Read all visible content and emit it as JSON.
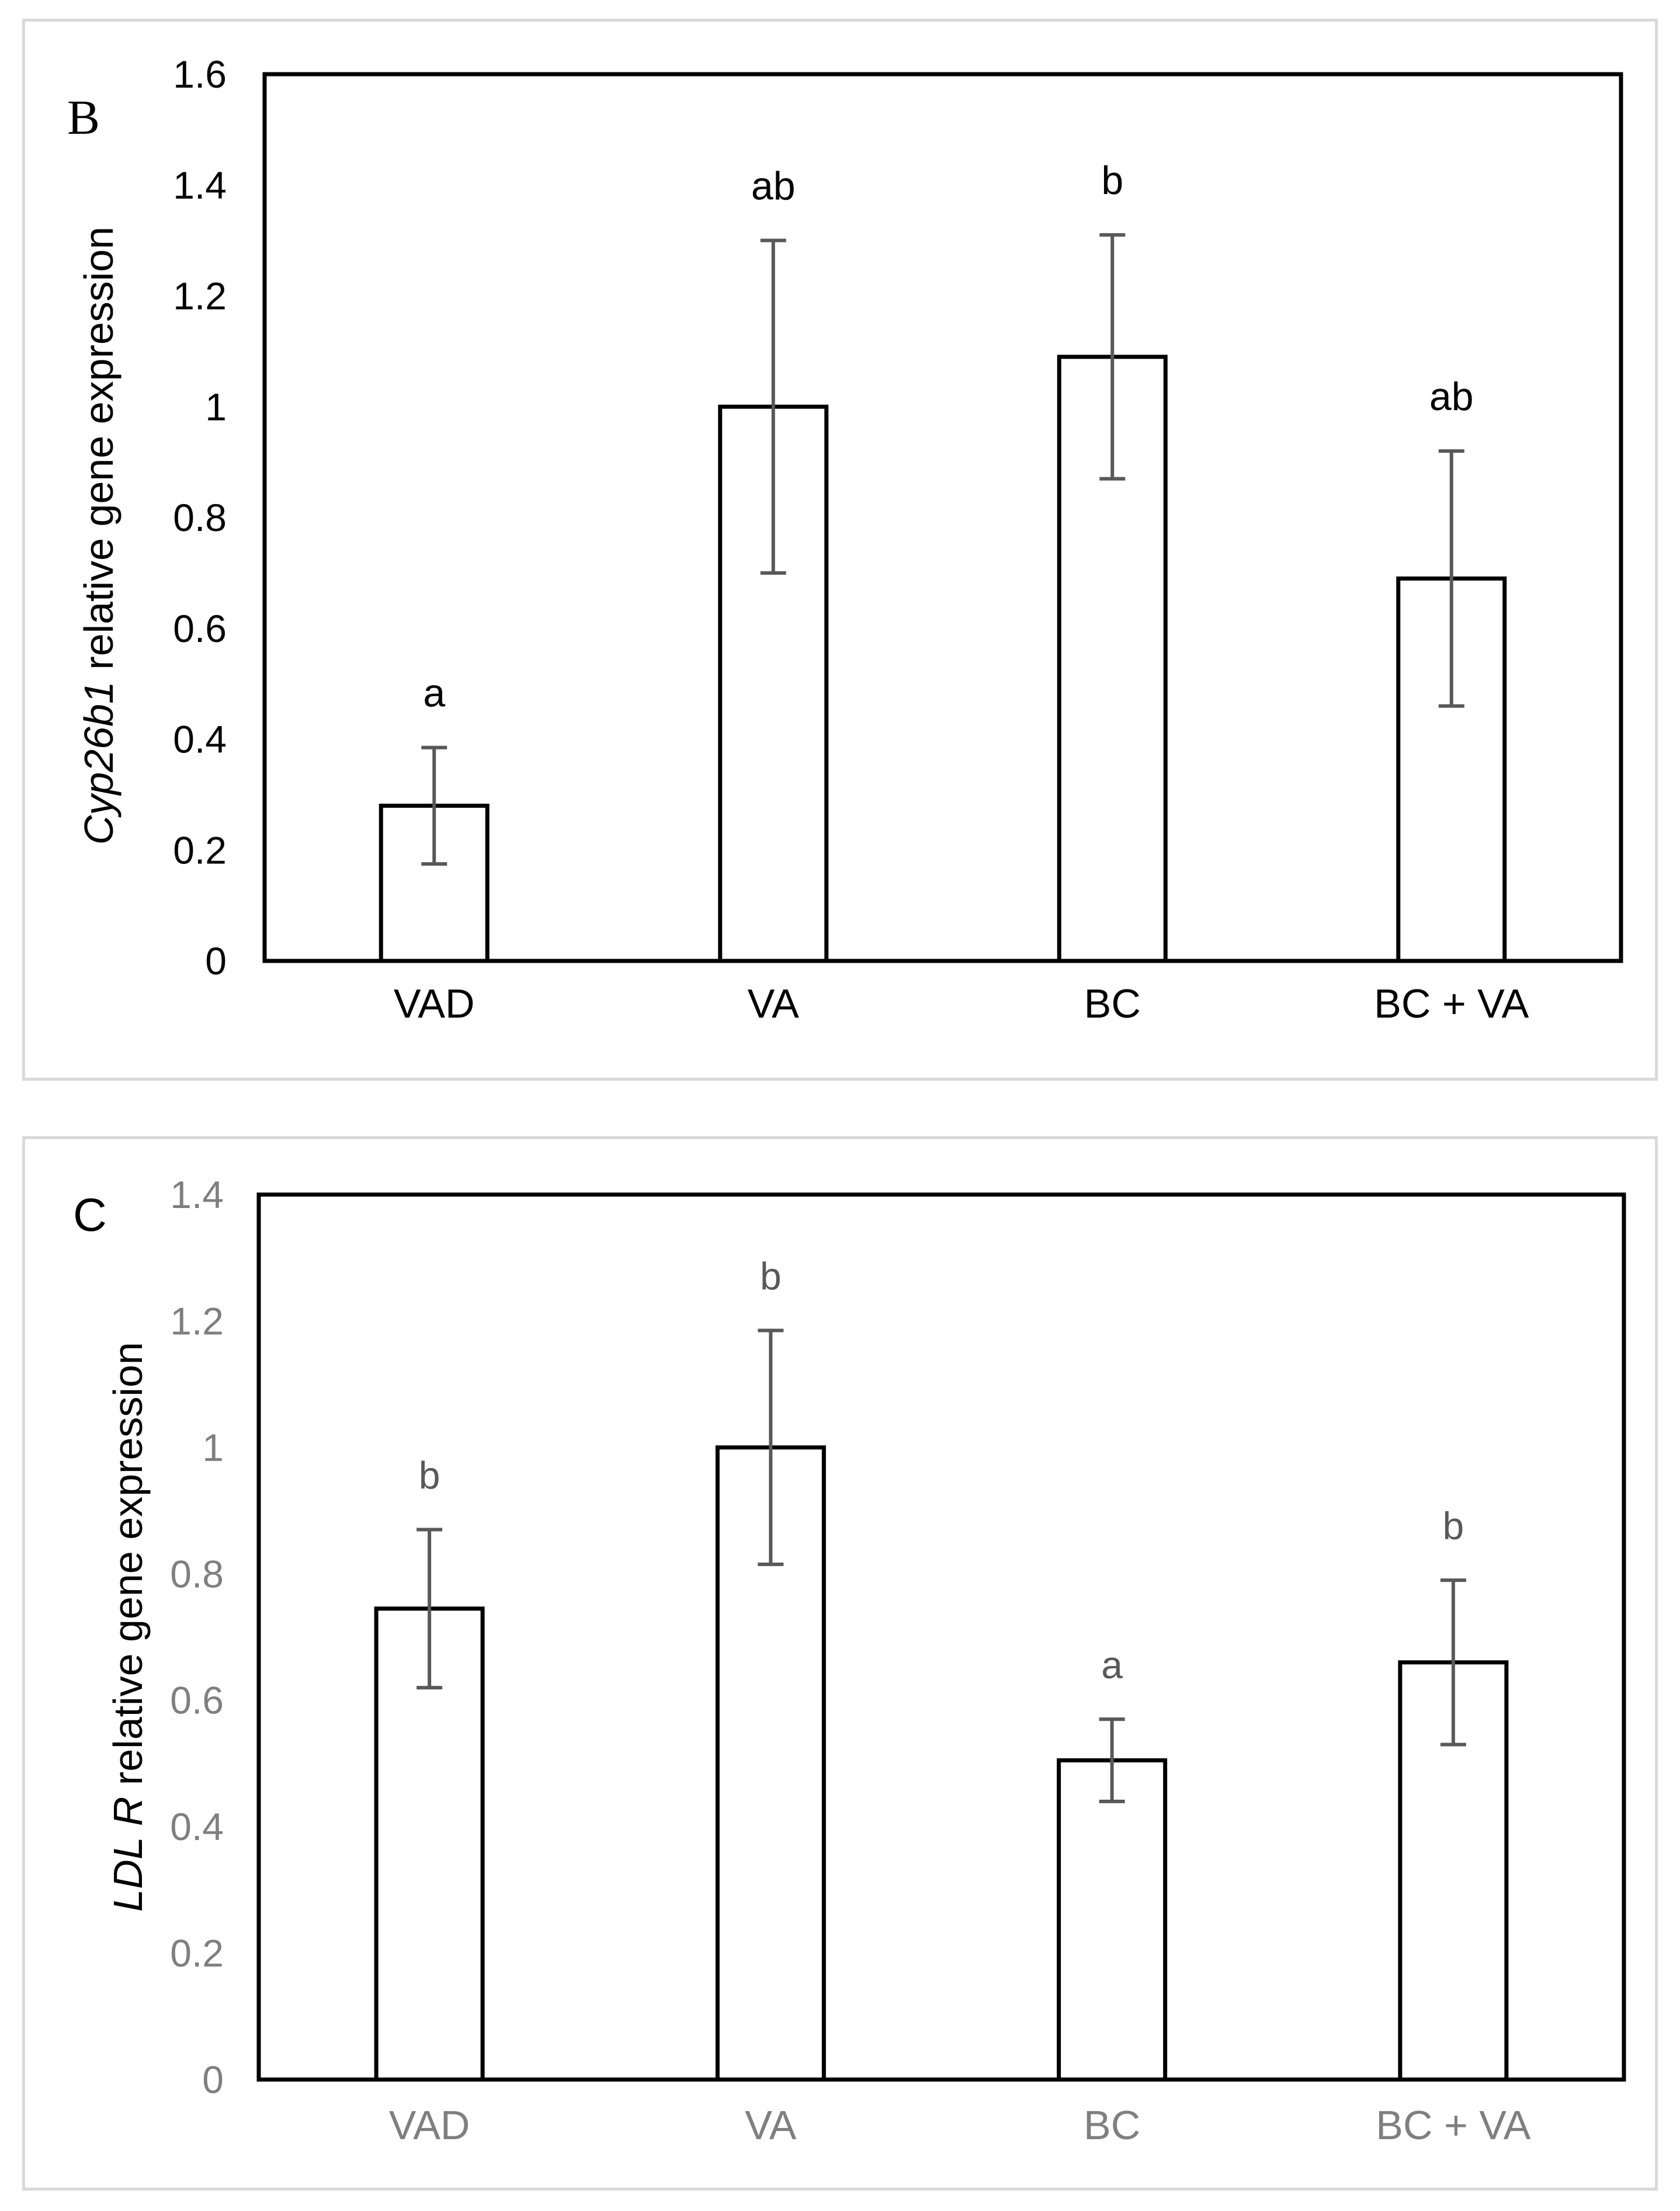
{
  "chart_data": [
    {
      "type": "bar",
      "panel_label": "B",
      "title": "",
      "xlabel": "",
      "ylabel_gene": "Cyp26b1",
      "ylabel_rest": " relative gene expression",
      "categories": [
        "VAD",
        "VA",
        "BC",
        "BC + VA"
      ],
      "values": [
        0.28,
        1.0,
        1.09,
        0.69
      ],
      "errors": [
        0.105,
        0.3,
        0.22,
        0.23
      ],
      "significance": [
        "a",
        "ab",
        "b",
        "ab"
      ],
      "ylim": [
        0,
        1.6
      ],
      "yticks": [
        "0",
        "0.2",
        "0.4",
        "0.6",
        "0.8",
        "1",
        "1.2",
        "1.4",
        "1.6"
      ],
      "grid": false,
      "tick_color": "#000000",
      "letter_color": "#000000"
    },
    {
      "type": "bar",
      "panel_label": "C",
      "title": "",
      "xlabel": "",
      "ylabel_gene": "LDL R",
      "ylabel_rest": " relative gene expression",
      "categories": [
        "VAD",
        "VA",
        "BC",
        "BC + VA"
      ],
      "values": [
        0.745,
        1.0,
        0.505,
        0.66
      ],
      "errors": [
        0.125,
        0.185,
        0.065,
        0.13
      ],
      "significance": [
        "b",
        "b",
        "a",
        "b"
      ],
      "ylim": [
        0,
        1.4
      ],
      "yticks": [
        "0",
        "0.2",
        "0.4",
        "0.6",
        "0.8",
        "1",
        "1.2",
        "1.4"
      ],
      "grid": false,
      "tick_color": "#7f7f7f",
      "letter_color": "#595959"
    }
  ]
}
